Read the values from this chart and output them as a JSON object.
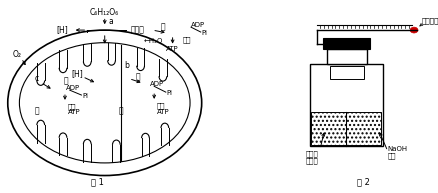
{
  "fig1_label": "图 1",
  "fig2_label": "图 2",
  "background": "#ffffff",
  "line_color": "#000000",
  "text_color": "#000000",
  "glucose": "C₆H₁₂O₆",
  "a": "a",
  "b": "b",
  "c": "c",
  "jia": "甲",
  "yi": "乙",
  "H_out": "[H]",
  "H_in": "[H]",
  "bingsuan": "丙酮酸",
  "H2O": "←H₂O",
  "O2": "O₂",
  "neng1": "能",
  "neng2": "能",
  "neng3": "能",
  "ADP1": "ADP",
  "Pi1": "Pi",
  "ATP1": "ATP",
  "reneng1": "热能",
  "reneng2": "热能",
  "reneng3": "热能",
  "ADP2": "ADP",
  "Pi2": "Pi",
  "ATP2": "ATP",
  "ADP3": "ADP",
  "Pi3": "Pi",
  "ATP3": "ATP",
  "hongse": "红色液滴",
  "jiaomu": "酵母菌",
  "peiyang": "培养液",
  "NaOH": "NaOH",
  "rongye": "溶液"
}
